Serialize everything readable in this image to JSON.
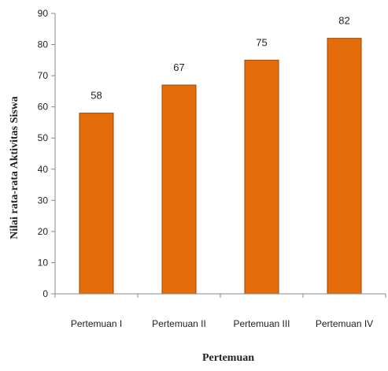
{
  "chart_data": {
    "type": "bar",
    "categories": [
      "Pertemuan I",
      "Pertemuan II",
      "Pertemuan III",
      "Pertemuan IV"
    ],
    "values": [
      58,
      67,
      75,
      82
    ],
    "data_labels": [
      "58",
      "67",
      "75",
      "82"
    ],
    "xlabel": "Pertemuan",
    "ylabel": "Nilai rata-rata Aktivitas  Siswa",
    "ylim": [
      0,
      90
    ],
    "yticks": [
      0,
      10,
      20,
      30,
      40,
      50,
      60,
      70,
      80,
      90
    ],
    "ytick_labels": [
      "0",
      "10",
      "20",
      "30",
      "40",
      "50",
      "60",
      "70",
      "80",
      "90"
    ],
    "grid": false,
    "legend": "none",
    "bar_color": "#E46C0A",
    "bar_edge_color": "#9C4A08"
  }
}
